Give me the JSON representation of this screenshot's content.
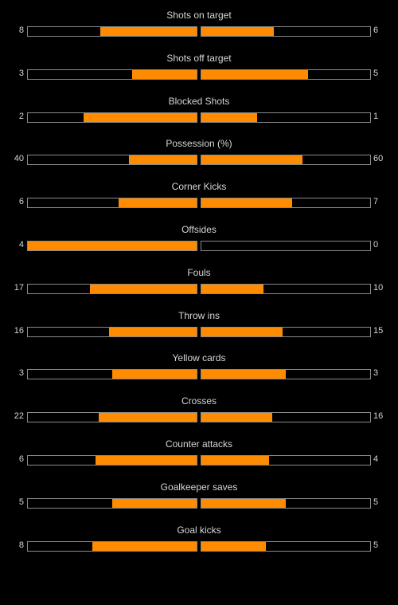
{
  "stats": [
    {
      "key": "shots-on-target",
      "label": "Shots on target",
      "home": "8",
      "away": "6",
      "home_fill": 0.57,
      "away_fill": 0.43
    },
    {
      "key": "shots-off-target",
      "label": "Shots off target",
      "home": "3",
      "away": "5",
      "home_fill": 0.38,
      "away_fill": 0.63
    },
    {
      "key": "blocked-shots",
      "label": "Blocked Shots",
      "home": "2",
      "away": "1",
      "home_fill": 0.67,
      "away_fill": 0.33
    },
    {
      "key": "possession",
      "label": "Possession (%)",
      "home": "40",
      "away": "60",
      "home_fill": 0.4,
      "away_fill": 0.6
    },
    {
      "key": "corner-kicks",
      "label": "Corner Kicks",
      "home": "6",
      "away": "7",
      "home_fill": 0.46,
      "away_fill": 0.54
    },
    {
      "key": "offsides",
      "label": "Offsides",
      "home": "4",
      "away": "0",
      "home_fill": 1.0,
      "away_fill": 0.0
    },
    {
      "key": "fouls",
      "label": "Fouls",
      "home": "17",
      "away": "10",
      "home_fill": 0.63,
      "away_fill": 0.37
    },
    {
      "key": "throw-ins",
      "label": "Throw ins",
      "home": "16",
      "away": "15",
      "home_fill": 0.52,
      "away_fill": 0.48
    },
    {
      "key": "yellow-cards",
      "label": "Yellow cards",
      "home": "3",
      "away": "3",
      "home_fill": 0.5,
      "away_fill": 0.5
    },
    {
      "key": "crosses",
      "label": "Crosses",
      "home": "22",
      "away": "16",
      "home_fill": 0.58,
      "away_fill": 0.42
    },
    {
      "key": "counter-attacks",
      "label": "Counter attacks",
      "home": "6",
      "away": "4",
      "home_fill": 0.6,
      "away_fill": 0.4
    },
    {
      "key": "goalkeeper-saves",
      "label": "Goalkeeper saves",
      "home": "5",
      "away": "5",
      "home_fill": 0.5,
      "away_fill": 0.5
    },
    {
      "key": "goal-kicks",
      "label": "Goal kicks",
      "home": "8",
      "away": "5",
      "home_fill": 0.62,
      "away_fill": 0.38
    }
  ],
  "colors": {
    "fill": "#ff8c00",
    "bar_border": "#8a8a8a",
    "background": "#000000",
    "text": "#d6d6d6"
  }
}
